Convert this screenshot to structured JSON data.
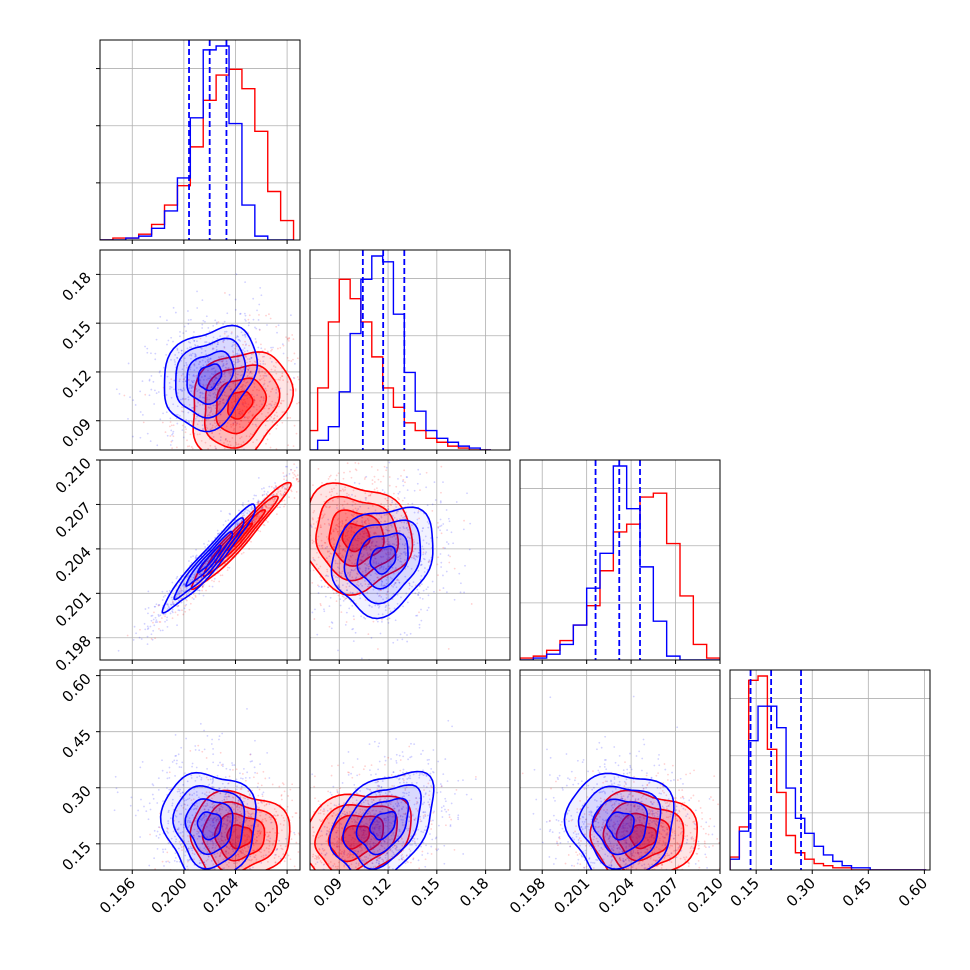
{
  "chart_data": {
    "type": "corner",
    "title": "",
    "grid": true,
    "colors": {
      "series_a": "#0000ff",
      "series_b": "#ff0000"
    },
    "series": [
      {
        "color": "#0000ff",
        "mean": [
          0.202,
          0.117,
          0.2033,
          0.2
        ],
        "std": [
          0.0015,
          0.013,
          0.0015,
          0.06
        ]
      },
      {
        "color": "#ff0000",
        "mean": [
          0.2043,
          0.1,
          0.2048,
          0.17
        ],
        "std": [
          0.0016,
          0.014,
          0.0015,
          0.05
        ]
      }
    ],
    "parameters": [
      {
        "range": [
          0.1935,
          0.209
        ],
        "ticks": [
          0.196,
          0.2,
          0.204,
          0.208
        ],
        "tick_labels": [
          "0.196",
          "0.200",
          "0.204",
          "0.208"
        ]
      },
      {
        "range": [
          0.072,
          0.195
        ],
        "ticks": [
          0.09,
          0.12,
          0.15,
          0.18
        ],
        "tick_labels": [
          "0.09",
          "0.12",
          "0.15",
          "0.18"
        ]
      },
      {
        "range": [
          0.1965,
          0.21
        ],
        "ticks": [
          0.198,
          0.201,
          0.204,
          0.207,
          0.21
        ],
        "tick_labels": [
          "0.198",
          "0.201",
          "0.204",
          "0.207",
          "0.210"
        ]
      },
      {
        "range": [
          0.08,
          0.615
        ],
        "ticks": [
          0.15,
          0.3,
          0.45,
          0.6
        ],
        "tick_labels": [
          "0.15",
          "0.30",
          "0.45",
          "0.60"
        ]
      }
    ],
    "quantile_lines": [
      [
        0.2004,
        0.202,
        0.2033
      ],
      [
        0.1045,
        0.117,
        0.13
      ],
      [
        0.2016,
        0.2032,
        0.2046
      ],
      [
        0.135,
        0.19,
        0.27
      ]
    ],
    "histograms": [
      {
        "bins": [
          0.1935,
          0.1945,
          0.1955,
          0.1965,
          0.1975,
          0.1985,
          0.1995,
          0.2005,
          0.2015,
          0.2025,
          0.2035,
          0.2045,
          0.2055,
          0.2065,
          0.2075,
          0.2085
        ],
        "series_a": [
          0,
          0,
          1,
          2,
          6,
          15,
          32,
          63,
          98,
          100,
          60,
          18,
          2,
          0,
          0
        ],
        "series_b": [
          0,
          1,
          1,
          3,
          8,
          18,
          28,
          48,
          72,
          85,
          88,
          78,
          56,
          25,
          10
        ]
      },
      {
        "bins": [
          0.07,
          0.0767,
          0.0833,
          0.09,
          0.0967,
          0.1033,
          0.11,
          0.1167,
          0.1233,
          0.13,
          0.1367,
          0.1433,
          0.15,
          0.1567,
          0.1633,
          0.17,
          0.1767,
          0.1833
        ],
        "series_a": [
          0,
          5,
          12,
          30,
          60,
          88,
          100,
          97,
          70,
          40,
          20,
          10,
          6,
          4,
          2,
          1,
          0
        ],
        "series_b": [
          10,
          32,
          66,
          88,
          78,
          66,
          48,
          32,
          22,
          14,
          10,
          6,
          4,
          2,
          1,
          0,
          0
        ]
      },
      {
        "bins": [
          0.1965,
          0.1974,
          0.1983,
          0.1992,
          0.2001,
          0.201,
          0.2019,
          0.2028,
          0.2037,
          0.2046,
          0.2055,
          0.2064,
          0.2073,
          0.2082,
          0.2091,
          0.21
        ],
        "series_a": [
          0,
          1,
          3,
          8,
          18,
          37,
          55,
          100,
          78,
          48,
          20,
          2,
          0,
          0,
          0
        ],
        "series_b": [
          1,
          2,
          5,
          10,
          18,
          28,
          46,
          66,
          70,
          84,
          86,
          60,
          33,
          8,
          1
        ]
      },
      {
        "bins": [
          0.08,
          0.105,
          0.13,
          0.155,
          0.18,
          0.205,
          0.23,
          0.255,
          0.28,
          0.305,
          0.33,
          0.355,
          0.38,
          0.405,
          0.43,
          0.455,
          0.48,
          0.505,
          0.53,
          0.555,
          0.58,
          0.605
        ],
        "series_a": [
          5,
          18,
          60,
          76,
          76,
          66,
          38,
          24,
          17,
          11,
          7,
          4,
          2,
          1,
          1,
          0,
          0,
          0,
          0,
          0,
          0
        ],
        "series_b": [
          6,
          20,
          88,
          90,
          56,
          36,
          16,
          8,
          5,
          3,
          2,
          1,
          1,
          0,
          0,
          0,
          0,
          0,
          0,
          0,
          0
        ]
      }
    ],
    "contour_levels": [
      0.5,
      1.0,
      1.5,
      2.0
    ]
  }
}
